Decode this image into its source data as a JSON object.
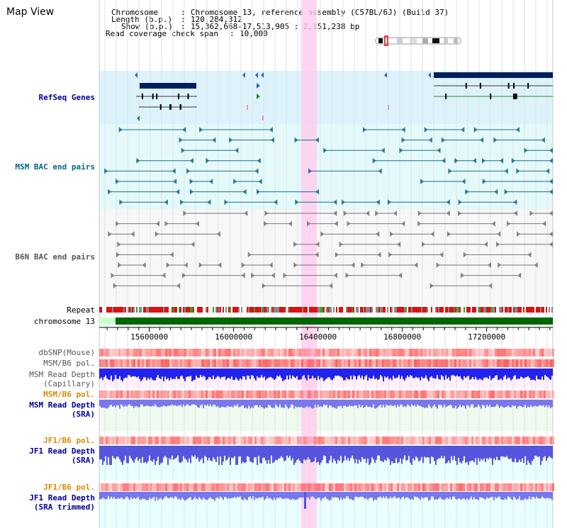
{
  "app": {
    "title": "Map View"
  },
  "header": {
    "chromosome_label": "Chromosome",
    "chromosome_value": "Chromosome 13, reference assembly (C57BL/6J) (Build 37)",
    "length_label": "Length (b.p.)",
    "length_value": "120,284,312",
    "show_label": "Show (b.p.)",
    "show_value": "15,362,668-17,513,905 : 2,151,238 bp",
    "coverage_label": "Read coverage check span",
    "coverage_value": "10,000",
    "separator": ":"
  },
  "tracks": {
    "refseq": "RefSeq Genes",
    "msm_bac": "MSM BAC end pairs",
    "b6n_bac": "B6N BAC end pairs",
    "repeat": "Repeat",
    "chromosome": "chromosome 13",
    "dbsnp": "dbSNP(Mouse)",
    "msm_b6_pol": "MSM/B6 pol.",
    "msm_depth_cap_1": "MSM Read Depth",
    "msm_depth_cap_2": "(Capillary)",
    "msm_b6_pol_2": "MSM/B6 pol.",
    "msm_depth_sra_1": "MSM Read Depth",
    "msm_depth_sra_2": "(SRA)",
    "jf1_b6_pol": "JF1/B6 pol.",
    "jf1_depth_sra_1": "JF1 Read Depth",
    "jf1_depth_sra_2": "(SRA)",
    "jf1_b6_pol_2": "JF1/B6 pol.",
    "jf1_depth_trim_1": "JF1 Read Depth",
    "jf1_depth_trim_2": "(SRA trimmed)"
  },
  "axis": {
    "ticks": [
      "15600000",
      "16000000",
      "16400000",
      "16800000",
      "17200000"
    ],
    "tick_values": [
      15600000,
      16000000,
      16400000,
      16800000,
      17200000
    ],
    "range": [
      15362668,
      17513905
    ]
  },
  "highlight": {
    "start": 16320000,
    "end": 16395000,
    "color": "#ffccee"
  },
  "colors": {
    "refseq_bg": "#ddf3fb",
    "msm_bg": "#e4fafa",
    "b6n_bg": "#f7f7f7",
    "gene": "#00205a",
    "msm_pair": "#1a6a8a",
    "b6n_pair": "#777777",
    "repeat": "#dd1111",
    "chromosome": "#006600",
    "polymorphism": "#ff5555",
    "depth_capillary": "#2222ee",
    "depth_sra": "#7777ee",
    "label_blue": "#000099",
    "label_orange": "#dd8800",
    "label_teal": "#006688"
  }
}
